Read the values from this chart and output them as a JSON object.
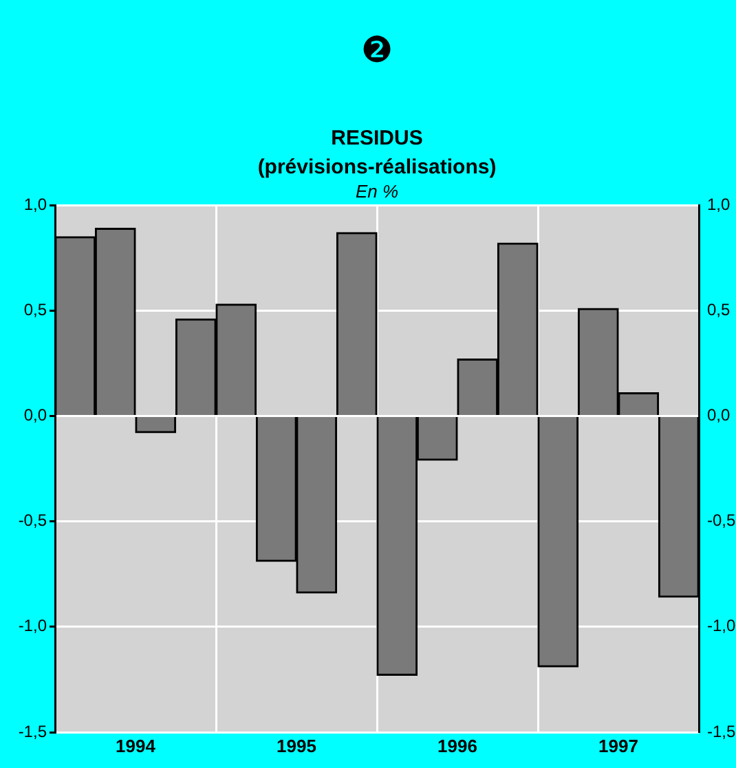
{
  "chart_data": {
    "type": "bar",
    "title": "RESIDUS",
    "subtitle": "(prévisions-réalisations)",
    "ylabel": "En %",
    "annotations": [
      "❷"
    ],
    "x": [
      1994.125,
      1994.375,
      1994.625,
      1994.875,
      1995.125,
      1995.375,
      1995.625,
      1995.875,
      1996.125,
      1996.375,
      1996.625,
      1996.875,
      1997.125,
      1997.375,
      1997.625,
      1997.875
    ],
    "values": [
      0.85,
      0.89,
      -0.08,
      0.46,
      0.53,
      -0.69,
      -0.84,
      0.87,
      -1.23,
      -0.21,
      0.27,
      0.82,
      -1.19,
      0.51,
      0.11,
      -0.86
    ],
    "color": "#7a7a7a",
    "xlim": [
      1994,
      1998
    ],
    "xticks": [
      {
        "value": 1994.5,
        "label": "1994"
      },
      {
        "value": 1995,
        "label": null
      },
      {
        "value": 1995.5,
        "label": "1995"
      },
      {
        "value": 1996,
        "label": null
      },
      {
        "value": 1996.5,
        "label": "1996"
      },
      {
        "value": 1997,
        "label": null
      },
      {
        "value": 1997.5,
        "label": "1997"
      }
    ],
    "ylim": [
      -1.5,
      1
    ],
    "yticks": [
      {
        "value": -1.5,
        "label": "-1,5"
      },
      {
        "value": -1,
        "label": "-1,0"
      },
      {
        "value": -0.5,
        "label": "-0,5"
      },
      {
        "value": 0,
        "label": "0,0"
      },
      {
        "value": 0.5,
        "label": "0,5"
      },
      {
        "value": 1,
        "label": "1,0"
      }
    ],
    "y2lim": [
      -1.5,
      1
    ],
    "y2ticks": [
      {
        "value": -1.5,
        "label": "-1,5"
      },
      {
        "value": -1,
        "label": "-1,0"
      },
      {
        "value": -0.5,
        "label": "-0,5"
      },
      {
        "value": 0,
        "label": "0,0"
      },
      {
        "value": 0.5,
        "label": "0,5"
      },
      {
        "value": 1,
        "label": "1,0"
      }
    ],
    "grid": true,
    "legend": false
  }
}
